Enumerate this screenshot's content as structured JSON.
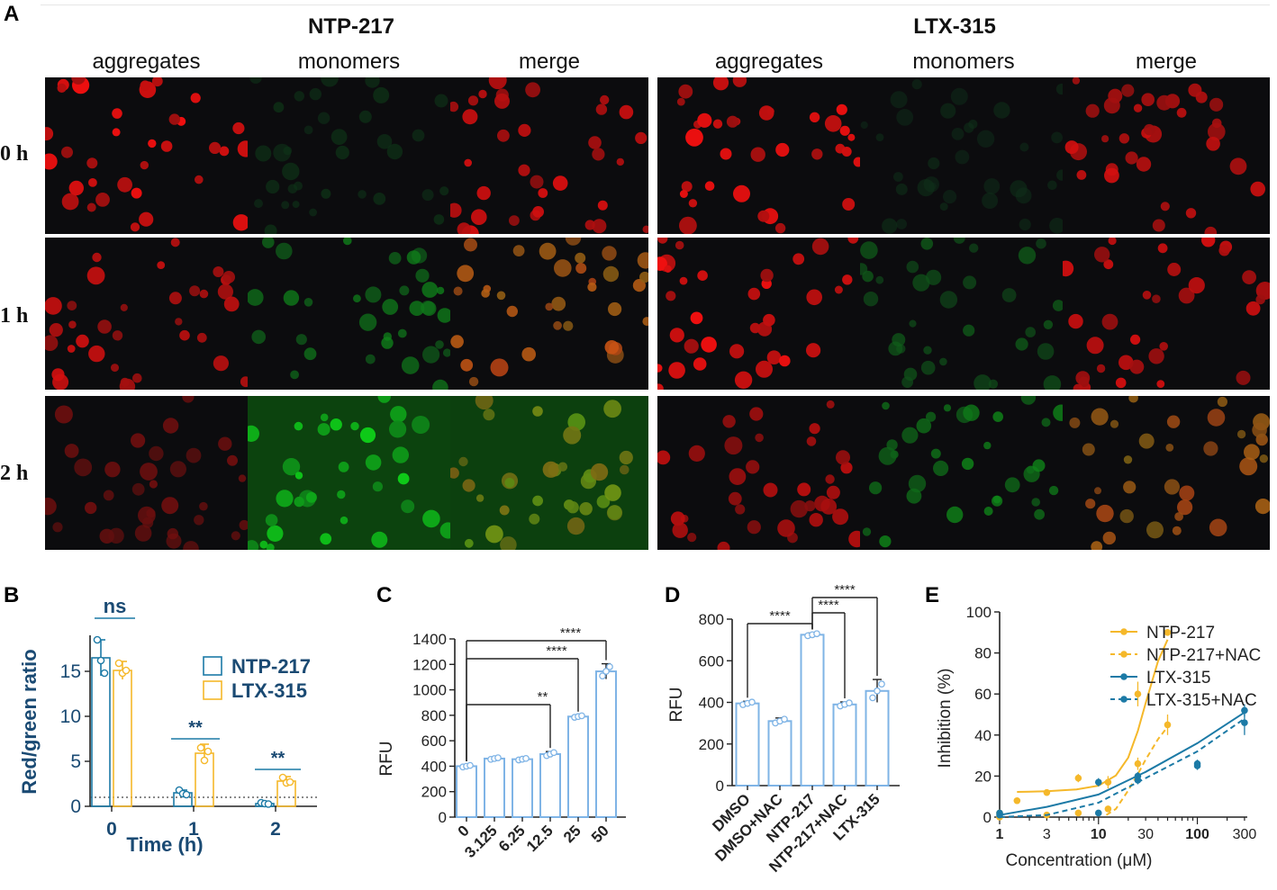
{
  "panel_a": {
    "label": "A",
    "groups": [
      {
        "title": "NTP-217",
        "columns": [
          "aggregates",
          "monomers",
          "merge"
        ]
      },
      {
        "title": "LTX-315",
        "columns": [
          "aggregates",
          "monomers",
          "merge"
        ]
      }
    ],
    "rows": [
      "0 h",
      "1 h",
      "2 h"
    ],
    "cells": [
      [
        [
          0.95,
          0.02
        ],
        [
          0.02,
          0.15
        ],
        [
          0.85,
          0.15
        ],
        [
          0.95,
          0.03
        ],
        [
          0.02,
          0.1
        ],
        [
          0.8,
          0.12
        ]
      ],
      [
        [
          0.8,
          0.04
        ],
        [
          0.05,
          0.5
        ],
        [
          0.75,
          0.45
        ],
        [
          0.95,
          0.05
        ],
        [
          0.05,
          0.35
        ],
        [
          0.85,
          0.3
        ]
      ],
      [
        [
          0.45,
          0.03
        ],
        [
          0.06,
          0.9
        ],
        [
          0.4,
          0.8
        ],
        [
          0.75,
          0.05
        ],
        [
          0.04,
          0.55
        ],
        [
          0.65,
          0.5
        ]
      ]
    ],
    "colors": {
      "red_channel": "#ff2020",
      "green_channel": "#30d040",
      "background": "#0b0b0b"
    }
  },
  "chart_data": [
    {
      "panel": "B",
      "type": "bar",
      "xlabel": "Time (h)",
      "ylabel": "Red/green ratio",
      "categories": [
        "0",
        "1",
        "2"
      ],
      "ylim": [
        0,
        19
      ],
      "yticks": [
        "0",
        "5",
        "10",
        "15"
      ],
      "series": [
        {
          "name": "NTP-217",
          "color": "#1c7aa6",
          "values": [
            16.5,
            1.5,
            0.3
          ],
          "errors": [
            2.0,
            0.3,
            0.15
          ],
          "points": [
            [
              18.5,
              16.2,
              14.8
            ],
            [
              1.8,
              1.4,
              1.3
            ],
            [
              0.4,
              0.3,
              0.25
            ]
          ]
        },
        {
          "name": "LTX-315",
          "color": "#f5b82a",
          "values": [
            15.1,
            5.9,
            2.8
          ],
          "errors": [
            1.0,
            1.0,
            0.5
          ],
          "points": [
            [
              15.9,
              14.8,
              15.1
            ],
            [
              6.5,
              5.1,
              6.1
            ],
            [
              3.2,
              2.6,
              2.7
            ]
          ]
        }
      ],
      "reference_line": 1,
      "significance": [
        {
          "label": "ns",
          "category": "0"
        },
        {
          "label": "**",
          "category": "1"
        },
        {
          "label": "**",
          "category": "2"
        }
      ]
    },
    {
      "panel": "C",
      "type": "bar",
      "ylabel": "RFU",
      "categories": [
        "0",
        "3.125",
        "6.25",
        "12.5",
        "25",
        "50"
      ],
      "values": [
        400,
        460,
        455,
        495,
        790,
        1145
      ],
      "errors": [
        10,
        10,
        10,
        20,
        10,
        60
      ],
      "ylim": [
        0,
        1400
      ],
      "yticks": [
        "0",
        "200",
        "400",
        "600",
        "800",
        "1000",
        "1200",
        "1400"
      ],
      "significance": [
        {
          "label": "**",
          "from": "0",
          "to": "12.5"
        },
        {
          "label": "****",
          "from": "0",
          "to": "25"
        },
        {
          "label": "****",
          "from": "0",
          "to": "50"
        }
      ]
    },
    {
      "panel": "D",
      "type": "bar",
      "ylabel": "RFU",
      "categories": [
        "DMSO",
        "DMSO+NAC",
        "NTP-217",
        "NTP-217+NAC",
        "LTX-315"
      ],
      "values": [
        395,
        310,
        725,
        390,
        455
      ],
      "errors": [
        10,
        15,
        8,
        12,
        55
      ],
      "ylim": [
        0,
        800
      ],
      "yticks": [
        "0",
        "200",
        "400",
        "600",
        "800"
      ],
      "significance": [
        {
          "label": "****",
          "from": "DMSO",
          "to": "NTP-217"
        },
        {
          "label": "****",
          "from": "NTP-217",
          "to": "NTP-217+NAC"
        },
        {
          "label": "****",
          "from": "NTP-217",
          "to": "LTX-315"
        }
      ]
    },
    {
      "panel": "E",
      "type": "scatter",
      "xlabel": "Concentration (μM)",
      "ylabel": "Inhibition (%)",
      "xscale": "log",
      "xlim": [
        1,
        320
      ],
      "ylim": [
        0,
        100
      ],
      "xticks": [
        "1",
        "3",
        "10",
        "30",
        "100",
        "300"
      ],
      "yticks": [
        "0",
        "20",
        "40",
        "60",
        "80",
        "100"
      ],
      "legend": "top-right",
      "series": [
        {
          "name": "NTP-217",
          "color": "#f5b82a",
          "dashed": false,
          "x": [
            1,
            1.5,
            3,
            6.25,
            12.5,
            25,
            50
          ],
          "y": [
            2,
            8,
            12,
            19,
            17,
            60,
            90
          ],
          "err": [
            1,
            1,
            1,
            2,
            3,
            6,
            1
          ],
          "fit_x": [
            1.5,
            3,
            6,
            10,
            15,
            20,
            25,
            30,
            40,
            50
          ],
          "fit_y": [
            12.3,
            12.6,
            13.5,
            15.3,
            20.3,
            29,
            42,
            55.5,
            76,
            86.5
          ]
        },
        {
          "name": "NTP-217+NAC",
          "color": "#f5b82a",
          "dashed": true,
          "x": [
            1,
            3,
            6.25,
            12.5,
            25,
            50
          ],
          "y": [
            0,
            1,
            2,
            4,
            26,
            45
          ],
          "err": [
            1,
            1,
            1,
            1,
            3,
            5
          ],
          "fit_x": [
            12,
            15,
            20,
            25,
            30,
            40,
            50
          ],
          "fit_y": [
            1,
            4,
            13,
            21,
            28,
            38,
            44
          ]
        },
        {
          "name": "LTX-315",
          "color": "#1c7aa6",
          "dashed": false,
          "x": [
            1,
            10,
            25,
            100,
            300
          ],
          "y": [
            2,
            17,
            20,
            26,
            52
          ],
          "err": [
            1,
            2,
            2,
            2,
            3
          ],
          "fit_x": [
            1,
            3,
            10,
            30,
            100,
            300
          ],
          "fit_y": [
            1,
            5,
            11,
            22,
            36,
            51
          ]
        },
        {
          "name": "LTX-315+NAC",
          "color": "#1c7aa6",
          "dashed": true,
          "x": [
            1,
            10,
            25,
            100,
            300
          ],
          "y": [
            1,
            2,
            18,
            25,
            46
          ],
          "err": [
            1,
            1,
            2,
            2,
            6
          ],
          "fit_x": [
            1,
            3,
            10,
            30,
            100,
            300
          ],
          "fit_y": [
            0,
            1,
            7,
            19,
            32,
            48
          ]
        }
      ]
    }
  ]
}
